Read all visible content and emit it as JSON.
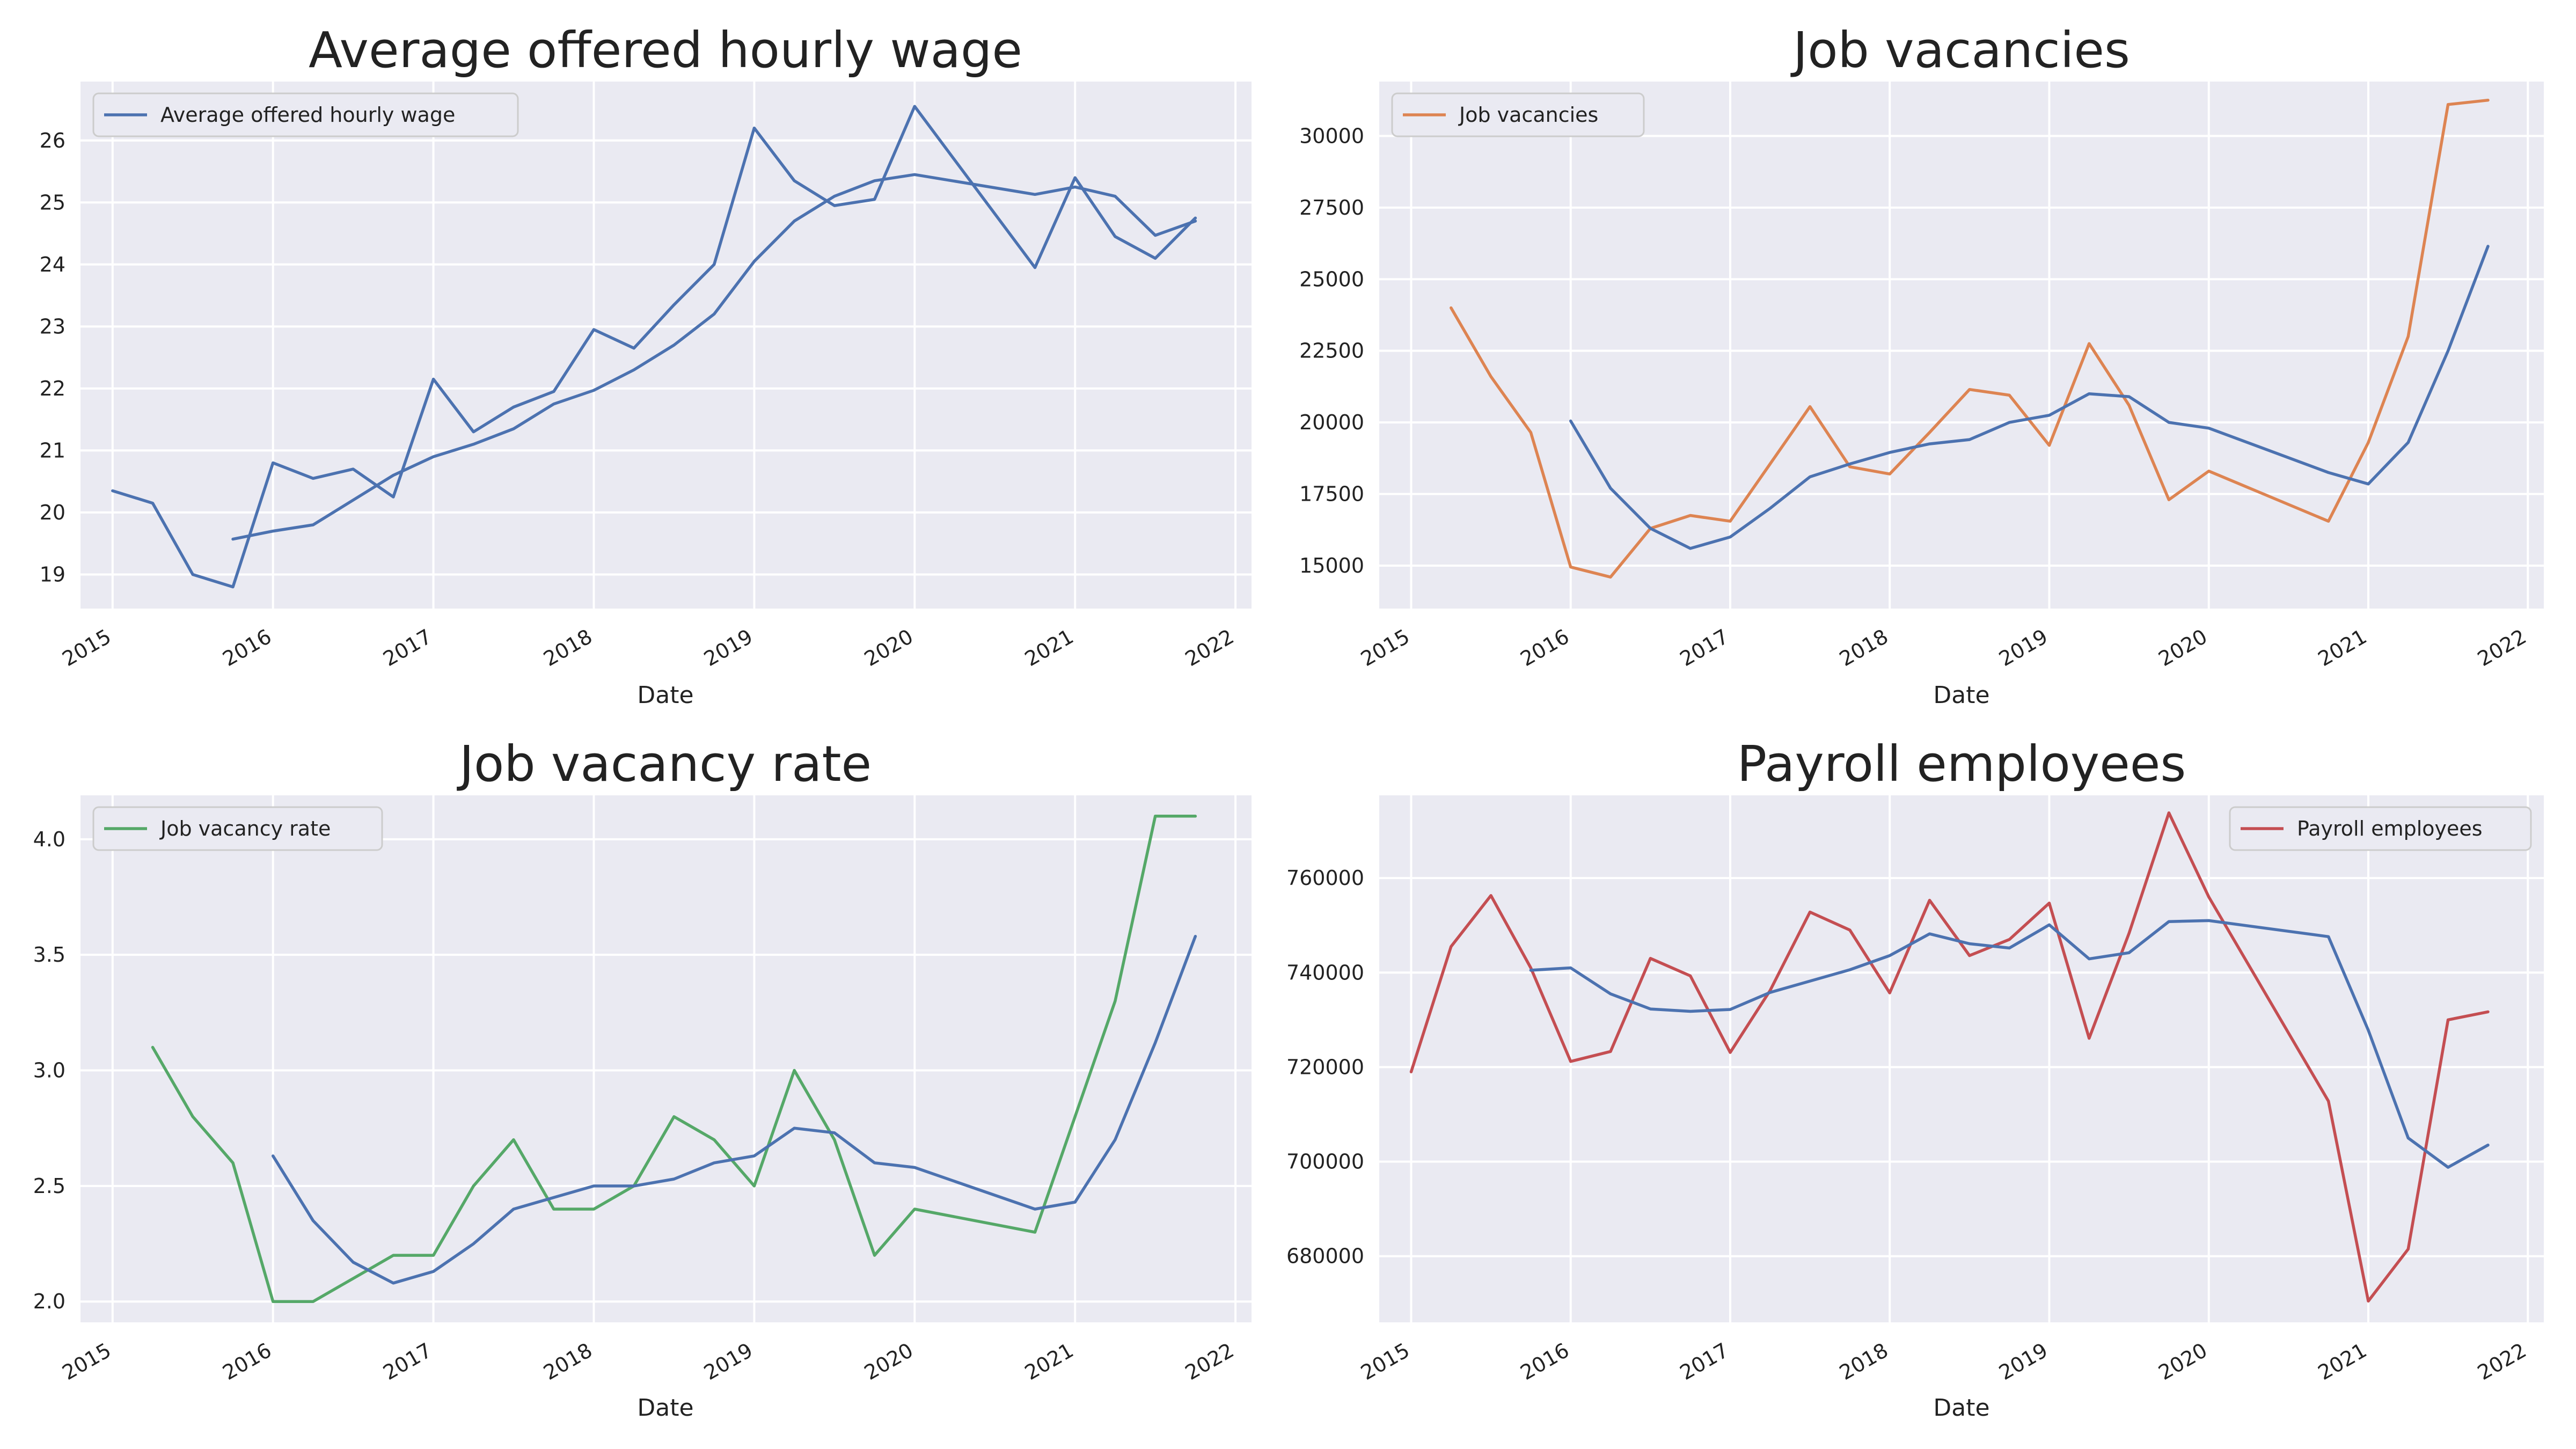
{
  "chart_data": [
    {
      "type": "line",
      "title": "Average offered hourly wage",
      "xlabel": "Date",
      "ylabel": "",
      "xlim": [
        2014.8,
        2022.1
      ],
      "ylim": [
        18.45,
        26.95
      ],
      "x_ticks": [
        2015,
        2016,
        2017,
        2018,
        2019,
        2020,
        2021,
        2022
      ],
      "y_ticks": [
        19,
        20,
        21,
        22,
        23,
        24,
        25,
        26
      ],
      "legend": "top-left",
      "grid": true,
      "series": [
        {
          "name": "Average offered hourly wage",
          "color": "#dd8452",
          "in_legend": true,
          "x": [
            2015.0,
            2015.25,
            2015.5,
            2015.75,
            2016.0,
            2016.25,
            2016.5,
            2016.75,
            2017.0,
            2017.25,
            2017.5,
            2017.75,
            2018.0,
            2018.25,
            2018.5,
            2018.75,
            2019.0,
            2019.25,
            2019.5,
            2019.75,
            2020.0,
            2020.75,
            2021.0,
            2021.25,
            2021.5,
            2021.75
          ],
          "y": [
            20.35,
            20.15,
            19.0,
            18.8,
            20.8,
            20.55,
            20.7,
            20.25,
            22.15,
            21.3,
            21.7,
            21.95,
            22.95,
            22.65,
            23.35,
            24.0,
            26.2,
            25.35,
            24.95,
            25.05,
            26.55,
            23.95,
            25.4,
            24.45,
            24.1,
            24.75
          ],
          "line_color": "#4c72b0"
        },
        {
          "name": "",
          "color": "#4c72b0",
          "in_legend": false,
          "x": [
            2015.75,
            2016.0,
            2016.25,
            2016.5,
            2016.75,
            2017.0,
            2017.25,
            2017.5,
            2017.75,
            2018.0,
            2018.25,
            2018.5,
            2018.75,
            2019.0,
            2019.25,
            2019.5,
            2019.75,
            2020.0,
            2020.75,
            2021.0,
            2021.25,
            2021.5,
            2021.75
          ],
          "y": [
            19.57,
            19.7,
            19.8,
            20.2,
            20.6,
            20.9,
            21.1,
            21.35,
            21.75,
            21.97,
            22.3,
            22.7,
            23.2,
            24.05,
            24.7,
            25.1,
            25.35,
            25.45,
            25.13,
            25.25,
            25.1,
            24.47,
            24.7
          ]
        }
      ]
    },
    {
      "type": "line",
      "title": "Job vacancies",
      "xlabel": "Date",
      "ylabel": "",
      "xlim": [
        2014.8,
        2022.1
      ],
      "ylim": [
        13500,
        31900
      ],
      "x_ticks": [
        2015,
        2016,
        2017,
        2018,
        2019,
        2020,
        2021,
        2022
      ],
      "y_ticks": [
        15000,
        17500,
        20000,
        22500,
        25000,
        27500,
        30000
      ],
      "legend": "top-left",
      "grid": true,
      "series": [
        {
          "name": "Job vacancies",
          "color": "#dd8452",
          "in_legend": true,
          "x": [
            2015.25,
            2015.5,
            2015.75,
            2016.0,
            2016.25,
            2016.5,
            2016.75,
            2017.0,
            2017.25,
            2017.5,
            2017.75,
            2018.0,
            2018.25,
            2018.5,
            2018.75,
            2019.0,
            2019.25,
            2019.5,
            2019.75,
            2020.0,
            2020.75,
            2021.0,
            2021.25,
            2021.5,
            2021.75
          ],
          "y": [
            24000,
            21600,
            19650,
            14950,
            14600,
            16300,
            16750,
            16550,
            18550,
            20550,
            18450,
            18200,
            19650,
            21150,
            20950,
            19200,
            22750,
            20600,
            17300,
            18300,
            16550,
            19300,
            23000,
            31100,
            31250
          ]
        },
        {
          "name": "",
          "color": "#4c72b0",
          "in_legend": false,
          "x": [
            2016.0,
            2016.25,
            2016.5,
            2016.75,
            2017.0,
            2017.25,
            2017.5,
            2017.75,
            2018.0,
            2018.25,
            2018.5,
            2018.75,
            2019.0,
            2019.25,
            2019.5,
            2019.75,
            2020.0,
            2020.75,
            2021.0,
            2021.25,
            2021.5,
            2021.75
          ],
          "y": [
            20050,
            17700,
            16300,
            15600,
            16000,
            17000,
            18100,
            18550,
            18950,
            19250,
            19400,
            20000,
            20250,
            21000,
            20900,
            20000,
            19800,
            18250,
            17850,
            19300,
            22500,
            26150
          ]
        }
      ]
    },
    {
      "type": "line",
      "title": "Job vacancy rate",
      "xlabel": "Date",
      "ylabel": "",
      "xlim": [
        2014.8,
        2022.1
      ],
      "ylim": [
        1.91,
        4.19
      ],
      "x_ticks": [
        2015,
        2016,
        2017,
        2018,
        2019,
        2020,
        2021,
        2022
      ],
      "y_ticks": [
        2.0,
        2.5,
        3.0,
        3.5,
        4.0
      ],
      "y_tick_labels": [
        "2.0",
        "2.5",
        "3.0",
        "3.5",
        "4.0"
      ],
      "legend": "top-left",
      "grid": true,
      "series": [
        {
          "name": "Job vacancy rate",
          "color": "#55a868",
          "in_legend": true,
          "x": [
            2015.25,
            2015.5,
            2015.75,
            2016.0,
            2016.25,
            2016.5,
            2016.75,
            2017.0,
            2017.25,
            2017.5,
            2017.75,
            2018.0,
            2018.25,
            2018.5,
            2018.75,
            2019.0,
            2019.25,
            2019.5,
            2019.75,
            2020.0,
            2020.75,
            2021.0,
            2021.25,
            2021.5,
            2021.75
          ],
          "y": [
            3.1,
            2.8,
            2.6,
            2.0,
            2.0,
            2.1,
            2.2,
            2.2,
            2.5,
            2.7,
            2.4,
            2.4,
            2.5,
            2.8,
            2.7,
            2.5,
            3.0,
            2.7,
            2.2,
            2.4,
            2.3,
            2.8,
            3.3,
            4.1,
            4.1
          ]
        },
        {
          "name": "",
          "color": "#4c72b0",
          "in_legend": false,
          "x": [
            2016.0,
            2016.25,
            2016.5,
            2016.75,
            2017.0,
            2017.25,
            2017.5,
            2017.75,
            2018.0,
            2018.25,
            2018.5,
            2018.75,
            2019.0,
            2019.25,
            2019.5,
            2019.75,
            2020.0,
            2020.75,
            2021.0,
            2021.25,
            2021.5,
            2021.75
          ],
          "y": [
            2.63,
            2.35,
            2.17,
            2.08,
            2.13,
            2.25,
            2.4,
            2.45,
            2.5,
            2.5,
            2.53,
            2.6,
            2.63,
            2.75,
            2.73,
            2.6,
            2.58,
            2.4,
            2.43,
            2.7,
            3.12,
            3.58
          ]
        }
      ]
    },
    {
      "type": "line",
      "title": "Payroll employees",
      "xlabel": "Date",
      "ylabel": "",
      "xlim": [
        2014.8,
        2022.1
      ],
      "ylim": [
        666000,
        777500
      ],
      "x_ticks": [
        2015,
        2016,
        2017,
        2018,
        2019,
        2020,
        2021,
        2022
      ],
      "y_ticks": [
        680000,
        700000,
        720000,
        740000,
        760000
      ],
      "legend": "top-right",
      "grid": true,
      "series": [
        {
          "name": "Payroll employees",
          "color": "#c44e52",
          "in_legend": true,
          "x": [
            2015.0,
            2015.25,
            2015.5,
            2015.75,
            2016.0,
            2016.25,
            2016.5,
            2016.75,
            2017.0,
            2017.25,
            2017.5,
            2017.75,
            2018.0,
            2018.25,
            2018.5,
            2018.75,
            2019.0,
            2019.25,
            2019.5,
            2019.75,
            2020.0,
            2020.75,
            2021.0,
            2021.25,
            2021.5,
            2021.75
          ],
          "y": [
            719000,
            745500,
            756300,
            741000,
            721200,
            723300,
            743000,
            739300,
            723100,
            736200,
            752800,
            749000,
            735700,
            755300,
            743600,
            747000,
            754700,
            726100,
            748300,
            773800,
            756000,
            712800,
            670500,
            681500,
            730000,
            731700
          ]
        },
        {
          "name": "",
          "color": "#4c72b0",
          "in_legend": false,
          "x": [
            2015.75,
            2016.0,
            2016.25,
            2016.5,
            2016.75,
            2017.0,
            2017.25,
            2017.5,
            2017.75,
            2018.0,
            2018.25,
            2018.5,
            2018.75,
            2019.0,
            2019.25,
            2019.5,
            2019.75,
            2020.0,
            2020.75,
            2021.0,
            2021.25,
            2021.5,
            2021.75
          ],
          "y": [
            740500,
            741000,
            735500,
            732300,
            731800,
            732200,
            735800,
            738200,
            740600,
            743600,
            748200,
            746100,
            745200,
            750100,
            742900,
            744200,
            750800,
            751000,
            747600,
            727800,
            705000,
            698800,
            703500
          ]
        }
      ]
    }
  ]
}
